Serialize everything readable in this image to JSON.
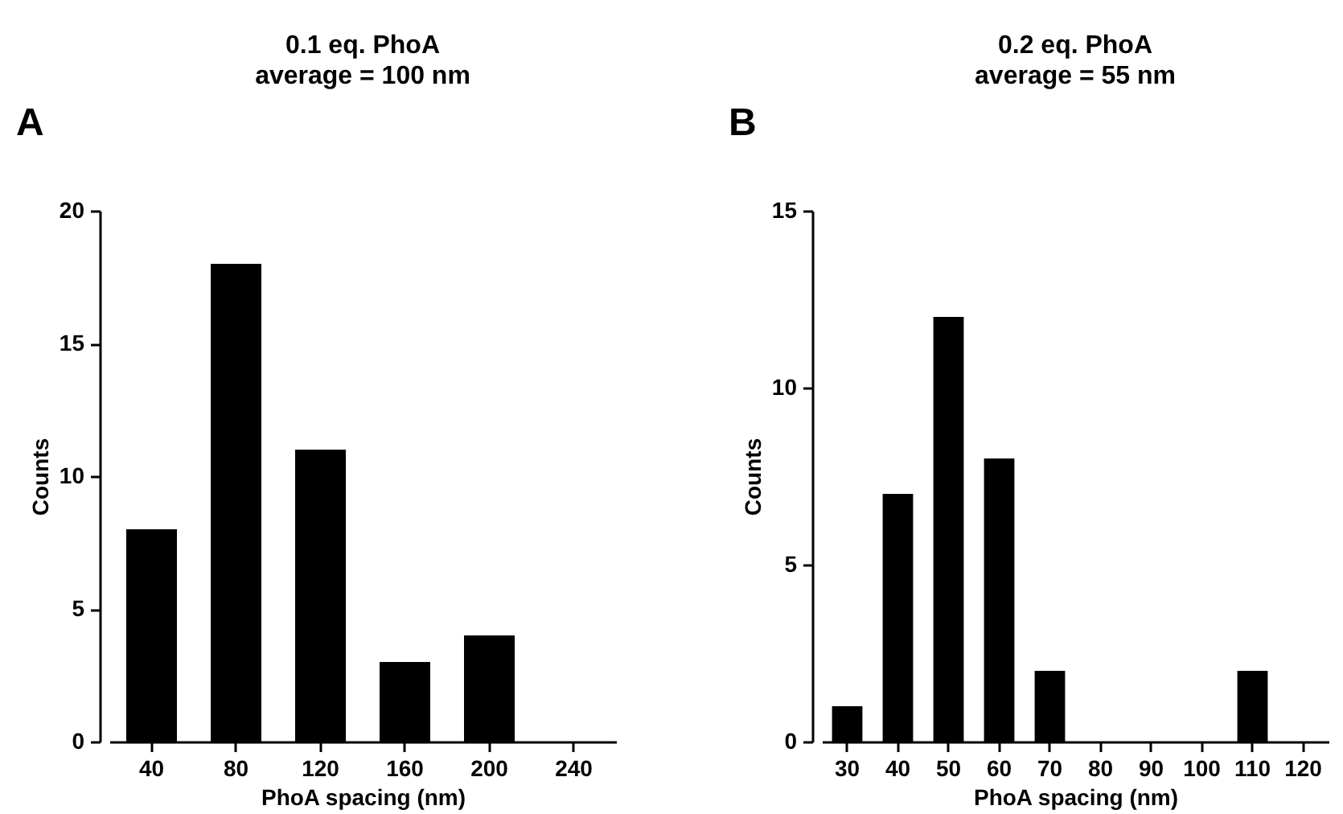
{
  "chart_data": [
    {
      "type": "bar",
      "title": "0.1 eq. PhoA",
      "subtitle": "average = 100 nm",
      "xlabel": "PhoA spacing (nm)",
      "ylabel": "Counts",
      "annotations": [
        "A"
      ],
      "categories": [
        "40",
        "80",
        "120",
        "160",
        "200",
        "240"
      ],
      "values": [
        8,
        18,
        11,
        3,
        4,
        0
      ],
      "color": "#000000",
      "ylim": [
        0,
        20
      ],
      "yticks": [
        0,
        5,
        10,
        15,
        20
      ],
      "grid": false
    },
    {
      "type": "bar",
      "title": "0.2 eq. PhoA",
      "subtitle": "average = 55 nm",
      "xlabel": "PhoA spacing (nm)",
      "ylabel": "Counts",
      "annotations": [
        "B"
      ],
      "categories": [
        "30",
        "40",
        "50",
        "60",
        "70",
        "80",
        "90",
        "100",
        "110",
        "120"
      ],
      "values": [
        1,
        7,
        12,
        8,
        2,
        0,
        0,
        0,
        2,
        0
      ],
      "color": "#000000",
      "ylim": [
        0,
        15
      ],
      "yticks": [
        0,
        5,
        10,
        15
      ],
      "grid": false
    }
  ]
}
